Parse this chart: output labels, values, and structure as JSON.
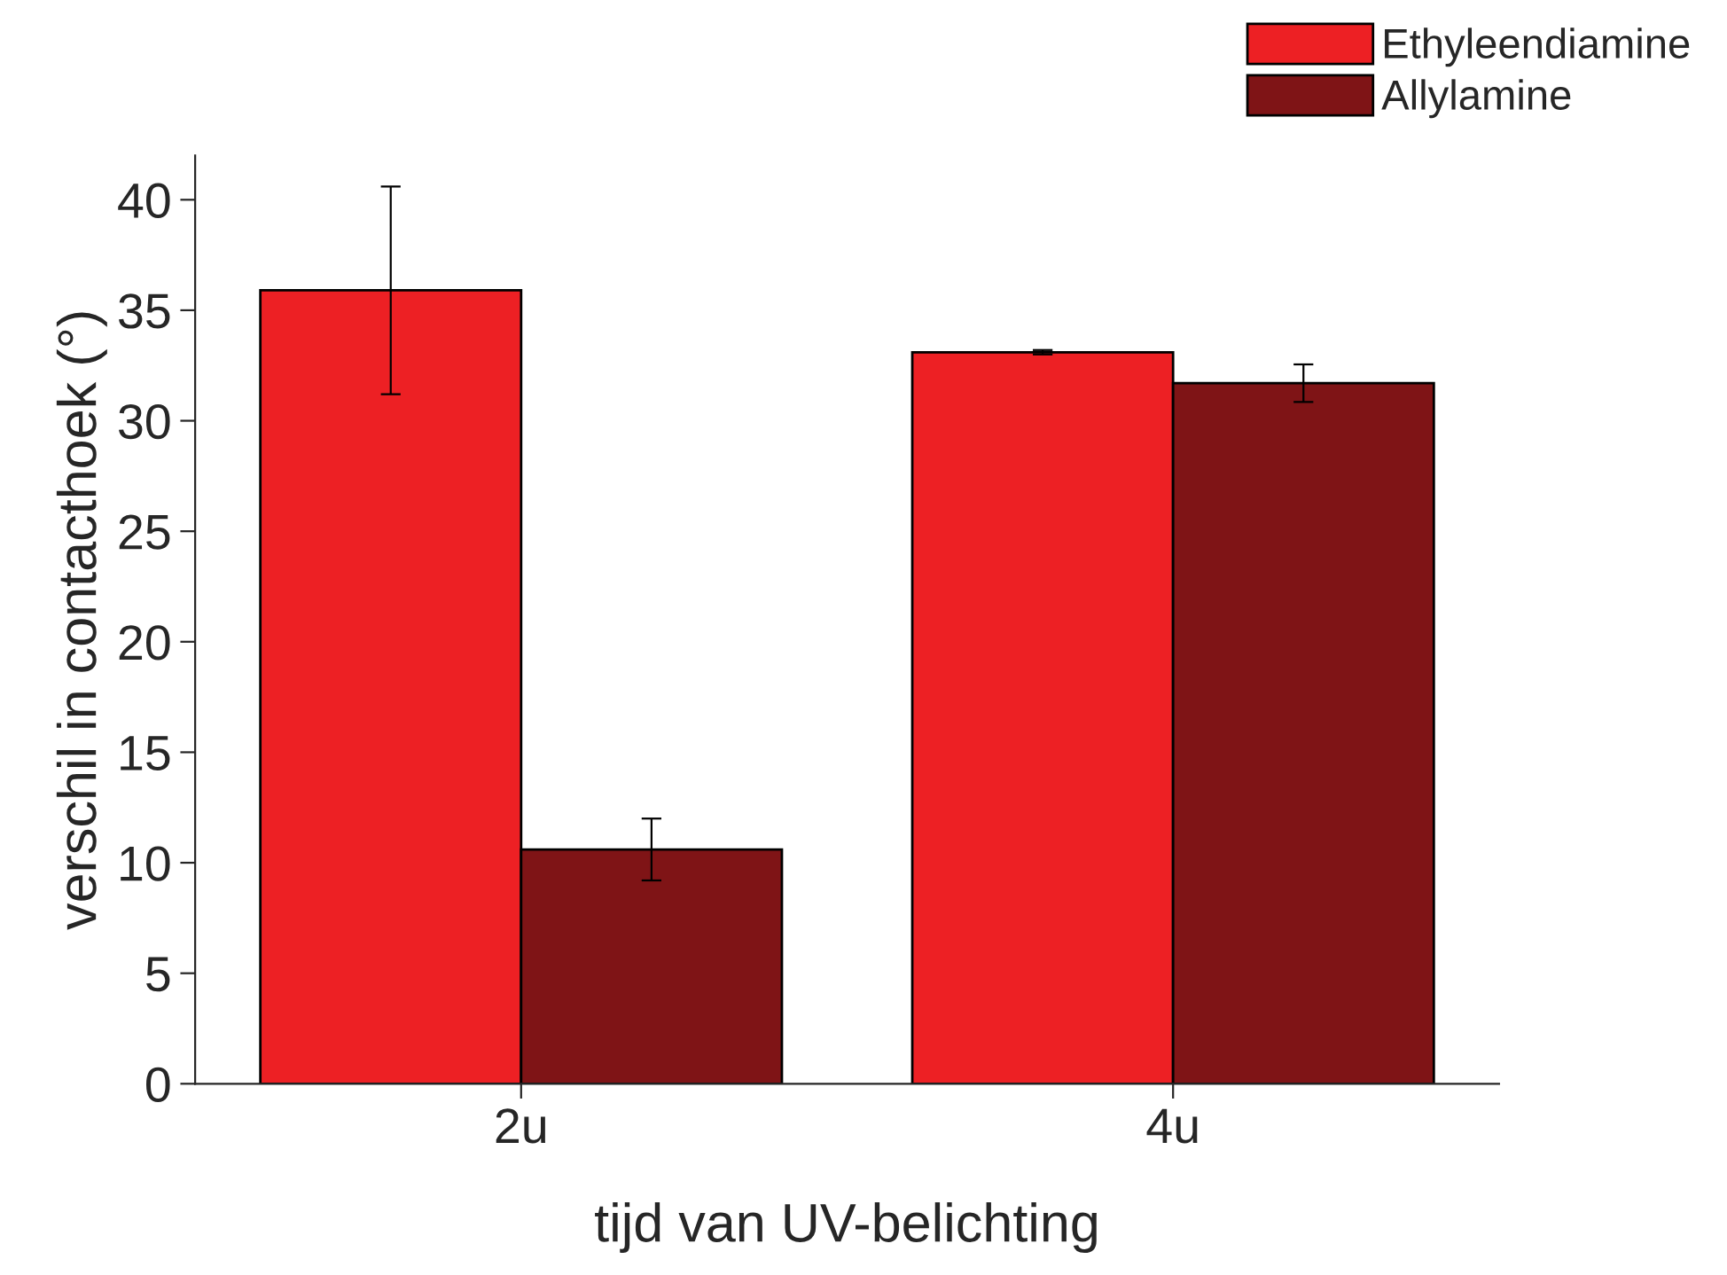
{
  "chart_data": {
    "type": "bar",
    "xlabel": "tijd van UV-belichting",
    "ylabel": "verschil in contacthoek (°)",
    "categories": [
      "2u",
      "4u"
    ],
    "series": [
      {
        "name": "Ethyleendiamine",
        "color": "#ed2024",
        "values": [
          35.9,
          33.1
        ],
        "errors": [
          4.7,
          0.1
        ]
      },
      {
        "name": "Allylamine",
        "color": "#7f1416",
        "values": [
          10.6,
          31.7
        ],
        "errors": [
          1.4,
          0.85
        ]
      }
    ],
    "ylim": [
      0,
      42
    ],
    "yticks": [
      0,
      5,
      10,
      15,
      20,
      25,
      30,
      35,
      40
    ],
    "grid": false,
    "legend": "top right"
  }
}
